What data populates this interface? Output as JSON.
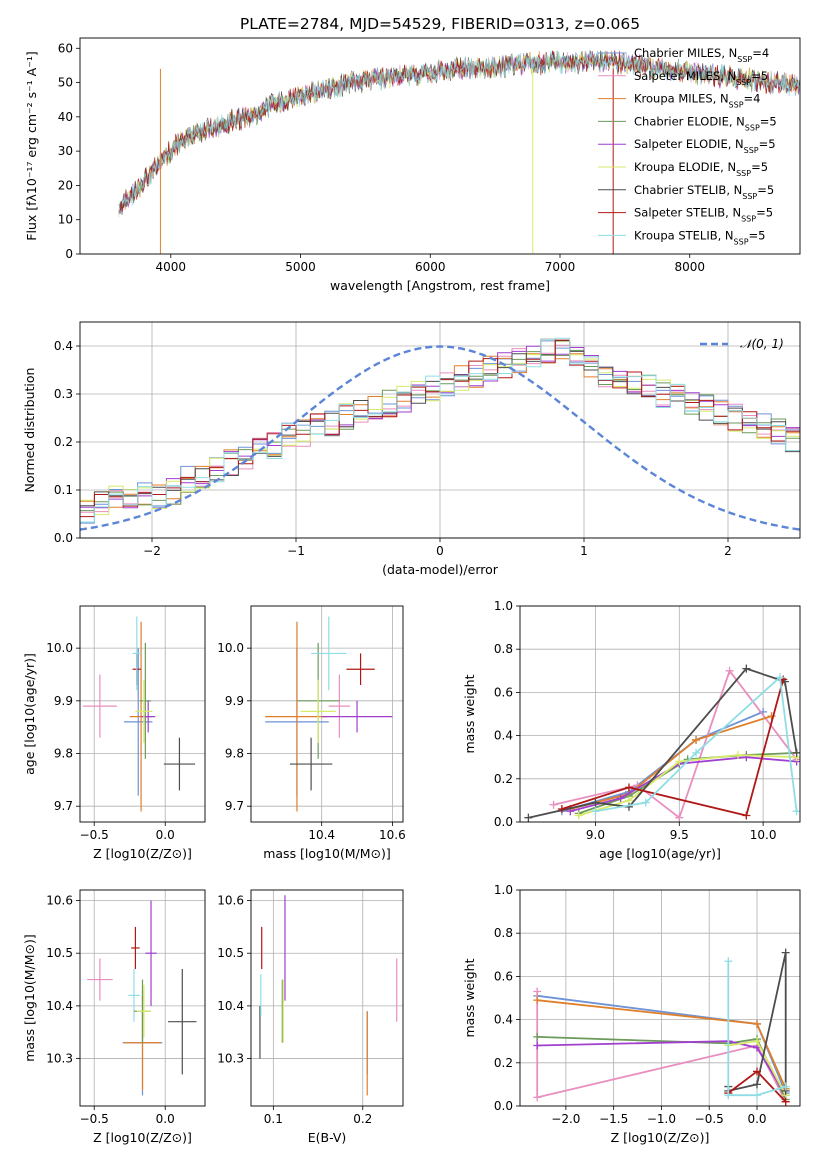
{
  "figure_title": "PLATE=2784, MJD=54529, FIBERID=0313, z=0.065",
  "colors": {
    "Chabrier MILES": "#6f93d6",
    "Salpeter MILES": "#e88fbf",
    "Kroupa MILES": "#e07f2a",
    "Chabrier ELODIE": "#6b9a5a",
    "Salpeter ELODIE": "#a13fcf",
    "Kroupa ELODIE": "#d8ea6a",
    "Chabrier STELIB": "#4d4d4d",
    "Salpeter STELIB": "#b01818",
    "Kroupa STELIB": "#8fdde4"
  },
  "chart_data": [
    {
      "id": "spectrum",
      "type": "line",
      "title": "PLATE=2784, MJD=54529, FIBERID=0313, z=0.065",
      "xlabel": "wavelength [Angstrom, rest frame]",
      "ylabel": "Flux [fλ10⁻¹⁷ erg cm⁻² s⁻¹ A⁻¹]",
      "xlim": [
        3300,
        8850
      ],
      "ylim": [
        0,
        63
      ],
      "xticks": [
        4000,
        5000,
        6000,
        7000,
        8000
      ],
      "yticks": [
        0,
        10,
        20,
        30,
        40,
        50,
        60
      ],
      "grid": false,
      "legend": {
        "placement": "right",
        "entries": [
          "Chabrier MILES, N_SSP=4",
          "Salpeter MILES, N_SSP=5",
          "Kroupa MILES, N_SSP=4",
          "Chabrier ELODIE, N_SSP=5",
          "Salpeter ELODIE, N_SSP=5",
          "Kroupa ELODIE, N_SSP=5",
          "Chabrier STELIB, N_SSP=5",
          "Salpeter STELIB, N_SSP=5",
          "Kroupa STELIB, N_SSP=5"
        ]
      },
      "continuum": [
        [
          3600,
          14
        ],
        [
          3700,
          17
        ],
        [
          3850,
          24
        ],
        [
          3950,
          28
        ],
        [
          4050,
          32
        ],
        [
          4200,
          35
        ],
        [
          4400,
          38
        ],
        [
          4600,
          40
        ],
        [
          4800,
          44
        ],
        [
          5000,
          46
        ],
        [
          5200,
          48
        ],
        [
          5400,
          50
        ],
        [
          5600,
          51
        ],
        [
          5800,
          52
        ],
        [
          6000,
          53
        ],
        [
          6200,
          54
        ],
        [
          6400,
          54.5
        ],
        [
          6600,
          55
        ],
        [
          6800,
          55.5
        ],
        [
          7000,
          56
        ],
        [
          7200,
          56
        ],
        [
          7400,
          56
        ],
        [
          7600,
          55
        ],
        [
          7800,
          54
        ],
        [
          8000,
          53
        ],
        [
          8200,
          52
        ],
        [
          8400,
          51
        ],
        [
          8600,
          50
        ],
        [
          8800,
          49.5
        ]
      ]
    },
    {
      "id": "residual-histogram",
      "type": "area",
      "xlabel": "(data-model)/error",
      "ylabel": "Normed distribution",
      "xlim": [
        -2.5,
        2.5
      ],
      "ylim": [
        0,
        0.45
      ],
      "xticks": [
        -2,
        -1,
        0,
        1,
        2
      ],
      "yticks": [
        0.0,
        0.1,
        0.2,
        0.3,
        0.4
      ],
      "grid": true,
      "legend": {
        "placement": "top-right",
        "entries": [
          "𝒩(0, 1)"
        ]
      },
      "reference_curve": "gaussian mean 0 sigma 1",
      "bin_width": 0.1,
      "histogram_profile": [
        0.05,
        0.07,
        0.08,
        0.08,
        0.09,
        0.09,
        0.1,
        0.12,
        0.13,
        0.14,
        0.16,
        0.17,
        0.18,
        0.19,
        0.21,
        0.22,
        0.23,
        0.24,
        0.25,
        0.26,
        0.27,
        0.28,
        0.29,
        0.3,
        0.31,
        0.32,
        0.33,
        0.34,
        0.35,
        0.36,
        0.37,
        0.38,
        0.39,
        0.39,
        0.38,
        0.36,
        0.34,
        0.33,
        0.32,
        0.31,
        0.3,
        0.29,
        0.28,
        0.27,
        0.26,
        0.25,
        0.24,
        0.23,
        0.22,
        0.2
      ]
    },
    {
      "id": "z-vs-age",
      "type": "scatter",
      "xlabel": "Z [log10(Z/Z⊙)]",
      "ylabel": "age  [log10(age/yr)]",
      "xlim": [
        -0.6,
        0.28
      ],
      "ylim": [
        9.67,
        10.08
      ],
      "xticks": [
        -0.5,
        0.0
      ],
      "yticks": [
        9.7,
        9.8,
        9.9,
        10.0
      ],
      "grid": true,
      "points": [
        {
          "name": "Salpeter MILES",
          "x": -0.46,
          "y": 9.89,
          "xerr": 0.12,
          "yerr": 0.06
        },
        {
          "name": "Chabrier MILES",
          "x": -0.19,
          "y": 9.86,
          "xerr": 0.1,
          "yerr": 0.14
        },
        {
          "name": "Kroupa MILES",
          "x": -0.17,
          "y": 9.87,
          "xerr": 0.08,
          "yerr": 0.18
        },
        {
          "name": "Salpeter STELIB",
          "x": -0.2,
          "y": 9.96,
          "xerr": 0.03,
          "yerr": 0.03
        },
        {
          "name": "Kroupa STELIB",
          "x": -0.2,
          "y": 9.99,
          "xerr": 0.03,
          "yerr": 0.07
        },
        {
          "name": "Chabrier ELODIE",
          "x": -0.14,
          "y": 9.9,
          "xerr": 0.04,
          "yerr": 0.11
        },
        {
          "name": "Salpeter ELODIE",
          "x": -0.12,
          "y": 9.87,
          "xerr": 0.05,
          "yerr": 0.03
        },
        {
          "name": "Kroupa ELODIE",
          "x": -0.15,
          "y": 9.88,
          "xerr": 0.06,
          "yerr": 0.06
        },
        {
          "name": "Chabrier STELIB",
          "x": 0.1,
          "y": 9.78,
          "xerr": 0.11,
          "yerr": 0.05
        }
      ]
    },
    {
      "id": "mass-vs-age",
      "type": "scatter",
      "xlabel": "mass [log10(M/M⊙)]",
      "ylabel": "",
      "xlim": [
        10.2,
        10.63
      ],
      "ylim": [
        9.67,
        10.08
      ],
      "xticks": [
        10.4,
        10.6
      ],
      "yticks": [
        9.7,
        9.8,
        9.9,
        10.0
      ],
      "grid": true,
      "points": [
        {
          "name": "Chabrier MILES",
          "x": 10.33,
          "y": 9.86,
          "xerr": 0.09,
          "yerr": 0.14
        },
        {
          "name": "Kroupa MILES",
          "x": 10.33,
          "y": 9.87,
          "xerr": 0.09,
          "yerr": 0.18
        },
        {
          "name": "Salpeter MILES",
          "x": 10.45,
          "y": 9.89,
          "xerr": 0.03,
          "yerr": 0.06
        },
        {
          "name": "Chabrier STELIB",
          "x": 10.37,
          "y": 9.78,
          "xerr": 0.06,
          "yerr": 0.05
        },
        {
          "name": "Chabrier ELODIE",
          "x": 10.39,
          "y": 9.9,
          "xerr": 0.06,
          "yerr": 0.11
        },
        {
          "name": "Kroupa ELODIE",
          "x": 10.39,
          "y": 9.88,
          "xerr": 0.05,
          "yerr": 0.06
        },
        {
          "name": "Kroupa STELIB",
          "x": 10.42,
          "y": 9.99,
          "xerr": 0.05,
          "yerr": 0.07
        },
        {
          "name": "Salpeter STELIB",
          "x": 10.51,
          "y": 9.96,
          "xerr": 0.04,
          "yerr": 0.03
        },
        {
          "name": "Salpeter ELODIE",
          "x": 10.5,
          "y": 9.87,
          "xerr": 0.1,
          "yerr": 0.03
        }
      ]
    },
    {
      "id": "age-vs-mass-weight",
      "type": "line",
      "xlabel": "age  [log10(age/yr)]",
      "ylabel": "mass weight",
      "xlim": [
        8.55,
        10.22
      ],
      "ylim": [
        0,
        1
      ],
      "xticks": [
        9.0,
        9.5,
        10.0
      ],
      "yticks": [
        0.0,
        0.2,
        0.4,
        0.6,
        0.8,
        1.0
      ],
      "grid": true,
      "series": [
        {
          "name": "Chabrier MILES",
          "x": [
            8.8,
            9.2,
            9.6,
            10.0
          ],
          "values": [
            0.05,
            0.14,
            0.38,
            0.51
          ]
        },
        {
          "name": "Salpeter MILES",
          "x": [
            8.75,
            9.25,
            9.5,
            9.8,
            10.2
          ],
          "values": [
            0.08,
            0.17,
            0.02,
            0.7,
            0.29
          ]
        },
        {
          "name": "Kroupa MILES",
          "x": [
            8.85,
            9.2,
            9.6,
            10.05
          ],
          "values": [
            0.06,
            0.13,
            0.38,
            0.49
          ]
        },
        {
          "name": "Chabrier ELODIE",
          "x": [
            8.9,
            9.2,
            9.55,
            9.9,
            10.2
          ],
          "values": [
            0.04,
            0.12,
            0.29,
            0.31,
            0.32
          ]
        },
        {
          "name": "Salpeter ELODIE",
          "x": [
            8.85,
            9.15,
            9.5,
            9.9,
            10.2
          ],
          "values": [
            0.05,
            0.11,
            0.27,
            0.3,
            0.28
          ]
        },
        {
          "name": "Kroupa ELODIE",
          "x": [
            8.9,
            9.2,
            9.5,
            9.85,
            10.2
          ],
          "values": [
            0.03,
            0.1,
            0.28,
            0.31,
            0.3
          ]
        },
        {
          "name": "Chabrier STELIB",
          "x": [
            8.6,
            9.0,
            9.2,
            9.9,
            10.13,
            10.2
          ],
          "values": [
            0.02,
            0.09,
            0.07,
            0.71,
            0.65,
            0.32
          ]
        },
        {
          "name": "Salpeter STELIB",
          "x": [
            8.8,
            9.2,
            9.9,
            10.12
          ],
          "values": [
            0.06,
            0.16,
            0.03,
            0.66
          ]
        },
        {
          "name": "Kroupa STELIB",
          "x": [
            9.0,
            9.3,
            9.6,
            10.1,
            10.2
          ],
          "values": [
            0.05,
            0.09,
            0.32,
            0.67,
            0.05
          ]
        }
      ]
    },
    {
      "id": "z-vs-mass",
      "type": "scatter",
      "xlabel": "Z [log10(Z/Z⊙)]",
      "ylabel": "mass [log10(M/M⊙)]",
      "xlim": [
        -0.6,
        0.28
      ],
      "ylim": [
        10.21,
        10.62
      ],
      "xticks": [
        -0.5,
        0.0
      ],
      "yticks": [
        10.3,
        10.4,
        10.5,
        10.6
      ],
      "grid": true,
      "points": [
        {
          "name": "Salpeter MILES",
          "x": -0.46,
          "y": 10.45,
          "xerr": 0.09,
          "yerr": 0.04
        },
        {
          "name": "Chabrier MILES",
          "x": -0.16,
          "y": 10.33,
          "xerr": 0.14,
          "yerr": 0.1
        },
        {
          "name": "Kroupa MILES",
          "x": -0.16,
          "y": 10.33,
          "xerr": 0.13,
          "yerr": 0.09
        },
        {
          "name": "Salpeter STELIB",
          "x": -0.21,
          "y": 10.51,
          "xerr": 0.03,
          "yerr": 0.04
        },
        {
          "name": "Kroupa STELIB",
          "x": -0.22,
          "y": 10.42,
          "xerr": 0.04,
          "yerr": 0.05
        },
        {
          "name": "Chabrier ELODIE",
          "x": -0.16,
          "y": 10.39,
          "xerr": 0.06,
          "yerr": 0.06
        },
        {
          "name": "Kroupa ELODIE",
          "x": -0.15,
          "y": 10.39,
          "xerr": 0.05,
          "yerr": 0.05
        },
        {
          "name": "Salpeter ELODIE",
          "x": -0.1,
          "y": 10.5,
          "xerr": 0.04,
          "yerr": 0.1
        },
        {
          "name": "Chabrier STELIB",
          "x": 0.12,
          "y": 10.37,
          "xerr": 0.1,
          "yerr": 0.1
        }
      ]
    },
    {
      "id": "ebv-vs-mass",
      "type": "scatter",
      "xlabel": "E(B-V)",
      "ylabel": "",
      "xlim": [
        0.075,
        0.245
      ],
      "ylim": [
        10.21,
        10.62
      ],
      "xticks": [
        0.1,
        0.2
      ],
      "yticks": [
        10.3,
        10.4,
        10.5,
        10.6
      ],
      "grid": true,
      "points": [
        {
          "name": "Chabrier STELIB",
          "x": 0.085,
          "y": 10.35,
          "xerr": 0,
          "yerr": 0.05
        },
        {
          "name": "Salpeter STELIB",
          "x": 0.087,
          "y": 10.51,
          "xerr": 0,
          "yerr": 0.04
        },
        {
          "name": "Kroupa STELIB",
          "x": 0.086,
          "y": 10.42,
          "xerr": 0,
          "yerr": 0.04
        },
        {
          "name": "Chabrier ELODIE",
          "x": 0.11,
          "y": 10.39,
          "xerr": 0,
          "yerr": 0.06
        },
        {
          "name": "Salpeter ELODIE",
          "x": 0.113,
          "y": 10.51,
          "xerr": 0,
          "yerr": 0.1
        },
        {
          "name": "Kroupa ELODIE",
          "x": 0.111,
          "y": 10.39,
          "xerr": 0,
          "yerr": 0.06
        },
        {
          "name": "Chabrier MILES",
          "x": 0.205,
          "y": 10.33,
          "xerr": 0,
          "yerr": 0.06
        },
        {
          "name": "Kroupa MILES",
          "x": 0.205,
          "y": 10.31,
          "xerr": 0,
          "yerr": 0.08
        },
        {
          "name": "Salpeter MILES",
          "x": 0.238,
          "y": 10.43,
          "xerr": 0,
          "yerr": 0.06
        }
      ]
    },
    {
      "id": "z-vs-mass-weight",
      "type": "line",
      "xlabel": "Z [log10(Z/Z⊙)]",
      "ylabel": "mass weight",
      "xlim": [
        -2.48,
        0.45
      ],
      "ylim": [
        0,
        1
      ],
      "xticks": [
        -2.0,
        -1.5,
        -1.0,
        -0.5,
        0.0
      ],
      "yticks": [
        0.0,
        0.2,
        0.4,
        0.6,
        0.8,
        1.0
      ],
      "grid": true,
      "series": [
        {
          "name": "Chabrier MILES",
          "x": [
            -2.3,
            0.0,
            0.3
          ],
          "values": [
            0.51,
            0.38,
            0.06
          ]
        },
        {
          "name": "Salpeter MILES",
          "x": [
            -2.3,
            -2.3,
            0.0,
            0.3
          ],
          "values": [
            0.53,
            0.04,
            0.28,
            0.02
          ]
        },
        {
          "name": "Kroupa MILES",
          "x": [
            -2.3,
            0.0,
            0.3
          ],
          "values": [
            0.49,
            0.38,
            0.08
          ]
        },
        {
          "name": "Chabrier ELODIE",
          "x": [
            -2.3,
            -0.3,
            0.0,
            0.3
          ],
          "values": [
            0.32,
            0.29,
            0.31,
            0.03
          ]
        },
        {
          "name": "Salpeter ELODIE",
          "x": [
            -2.3,
            -0.3,
            0.0,
            0.3
          ],
          "values": [
            0.28,
            0.3,
            0.27,
            0.05
          ]
        },
        {
          "name": "Kroupa ELODIE",
          "x": [
            -0.3,
            0.0,
            0.3
          ],
          "values": [
            0.28,
            0.3,
            0.05
          ]
        },
        {
          "name": "Chabrier STELIB",
          "x": [
            -0.3,
            -0.3,
            0.0,
            0.3,
            0.3
          ],
          "values": [
            0.09,
            0.07,
            0.1,
            0.71,
            0.07
          ]
        },
        {
          "name": "Salpeter STELIB",
          "x": [
            -0.3,
            0.0,
            0.3
          ],
          "values": [
            0.06,
            0.16,
            0.02
          ]
        },
        {
          "name": "Kroupa STELIB",
          "x": [
            -0.3,
            -0.3,
            0.0,
            0.3
          ],
          "values": [
            0.67,
            0.05,
            0.05,
            0.09
          ]
        }
      ]
    }
  ]
}
